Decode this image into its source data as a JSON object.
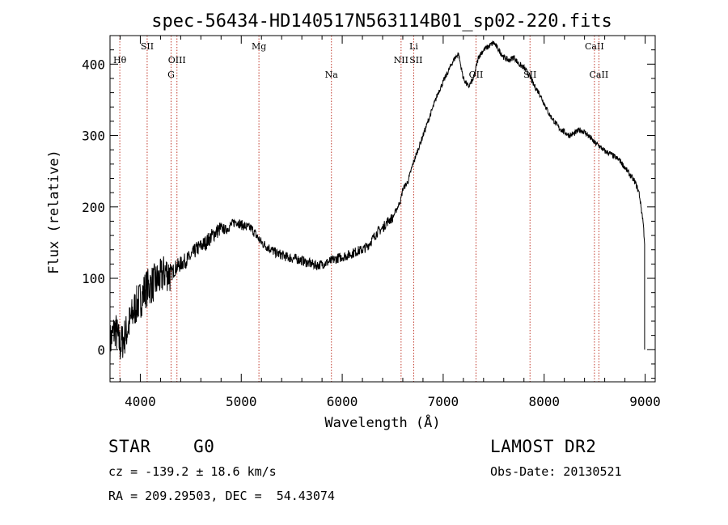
{
  "chart_data": {
    "type": "line",
    "title": "spec-56434-HD140517N563114B01_sp02-220.fits",
    "xlabel": "Wavelength (Å)",
    "ylabel": "Flux (relative)",
    "xlim": [
      3700,
      9100
    ],
    "ylim": [
      -45,
      440
    ],
    "xticks": [
      4000,
      5000,
      6000,
      7000,
      8000,
      9000
    ],
    "yticks": [
      0,
      100,
      200,
      300,
      400
    ],
    "grid": false,
    "series": [
      {
        "x": [
          3700,
          3750,
          3800,
          3850,
          3900,
          3950,
          4000,
          4050,
          4100,
          4150,
          4200,
          4250,
          4300,
          4350,
          4400,
          4450,
          4500,
          4550,
          4600,
          4650,
          4700,
          4750,
          4800,
          4850,
          4900,
          4950,
          5000,
          5050,
          5100,
          5150,
          5200,
          5250,
          5300,
          5350,
          5400,
          5450,
          5500,
          5550,
          5600,
          5650,
          5700,
          5750,
          5800,
          5850,
          5900,
          5950,
          6000,
          6050,
          6100,
          6150,
          6200,
          6250,
          6300,
          6350,
          6400,
          6450,
          6500,
          6550,
          6580,
          6600,
          6650,
          6700,
          6750,
          6800,
          6850,
          6900,
          6950,
          7000,
          7050,
          7100,
          7150,
          7200,
          7250,
          7300,
          7350,
          7400,
          7450,
          7500,
          7550,
          7600,
          7650,
          7700,
          7750,
          7800,
          7850,
          7900,
          7950,
          8000,
          8050,
          8100,
          8150,
          8200,
          8250,
          8300,
          8350,
          8400,
          8450,
          8500,
          8550,
          8600,
          8650,
          8700,
          8750,
          8800,
          8850,
          8900,
          8940,
          8960,
          8980,
          8995
        ],
        "y": [
          10,
          30,
          5,
          20,
          40,
          60,
          70,
          85,
          90,
          95,
          100,
          110,
          105,
          115,
          120,
          125,
          130,
          140,
          145,
          150,
          158,
          165,
          170,
          168,
          175,
          180,
          175,
          172,
          170,
          160,
          150,
          145,
          140,
          135,
          133,
          130,
          128,
          127,
          125,
          122,
          120,
          118,
          120,
          122,
          125,
          128,
          130,
          132,
          135,
          138,
          140,
          145,
          155,
          165,
          170,
          180,
          185,
          200,
          210,
          225,
          235,
          260,
          280,
          300,
          320,
          340,
          360,
          375,
          390,
          405,
          415,
          380,
          368,
          380,
          410,
          420,
          425,
          430,
          420,
          410,
          405,
          410,
          400,
          395,
          385,
          370,
          360,
          345,
          330,
          320,
          310,
          305,
          300,
          303,
          308,
          305,
          298,
          290,
          285,
          278,
          275,
          270,
          265,
          255,
          245,
          235,
          220,
          200,
          180,
          150
        ]
      }
    ],
    "annotations": [
      {
        "label": "Hθ",
        "x": 3797,
        "row": 1,
        "line": true
      },
      {
        "label": "SII",
        "x": 4068,
        "row": 0,
        "line": true
      },
      {
        "label": "OIII",
        "x": 4363,
        "row": 1,
        "line": true
      },
      {
        "label": "G",
        "x": 4305,
        "row": 2,
        "line": true
      },
      {
        "label": "Mg",
        "x": 5175,
        "row": 0,
        "line": true
      },
      {
        "label": "Na",
        "x": 5893,
        "row": 2,
        "line": true
      },
      {
        "label": "Li",
        "x": 6708,
        "row": 0,
        "line": true
      },
      {
        "label": "NII",
        "x": 6583,
        "row": 1,
        "line": true
      },
      {
        "label": "SII",
        "x": 6731,
        "row": 1,
        "line": false
      },
      {
        "label": "OII",
        "x": 7325,
        "row": 2,
        "line": true
      },
      {
        "label": "SII",
        "x": 7860,
        "row": 2,
        "line": true
      },
      {
        "label": "CaII",
        "x": 8498,
        "row": 0,
        "line": true
      },
      {
        "label": "CaII",
        "x": 8542,
        "row": 2,
        "line": true
      }
    ]
  },
  "info": {
    "class_label": "STAR",
    "subclass": "G0",
    "survey": "LAMOST DR2",
    "cz_line": "cz = -139.2 ± 18.6 km/s",
    "obs_date_line": "Obs-Date: 20130521",
    "coords_line": "RA = 209.29503, DEC =  54.43074"
  },
  "colors": {
    "spectrum": "#000000",
    "marker_line": "#c0392b"
  }
}
